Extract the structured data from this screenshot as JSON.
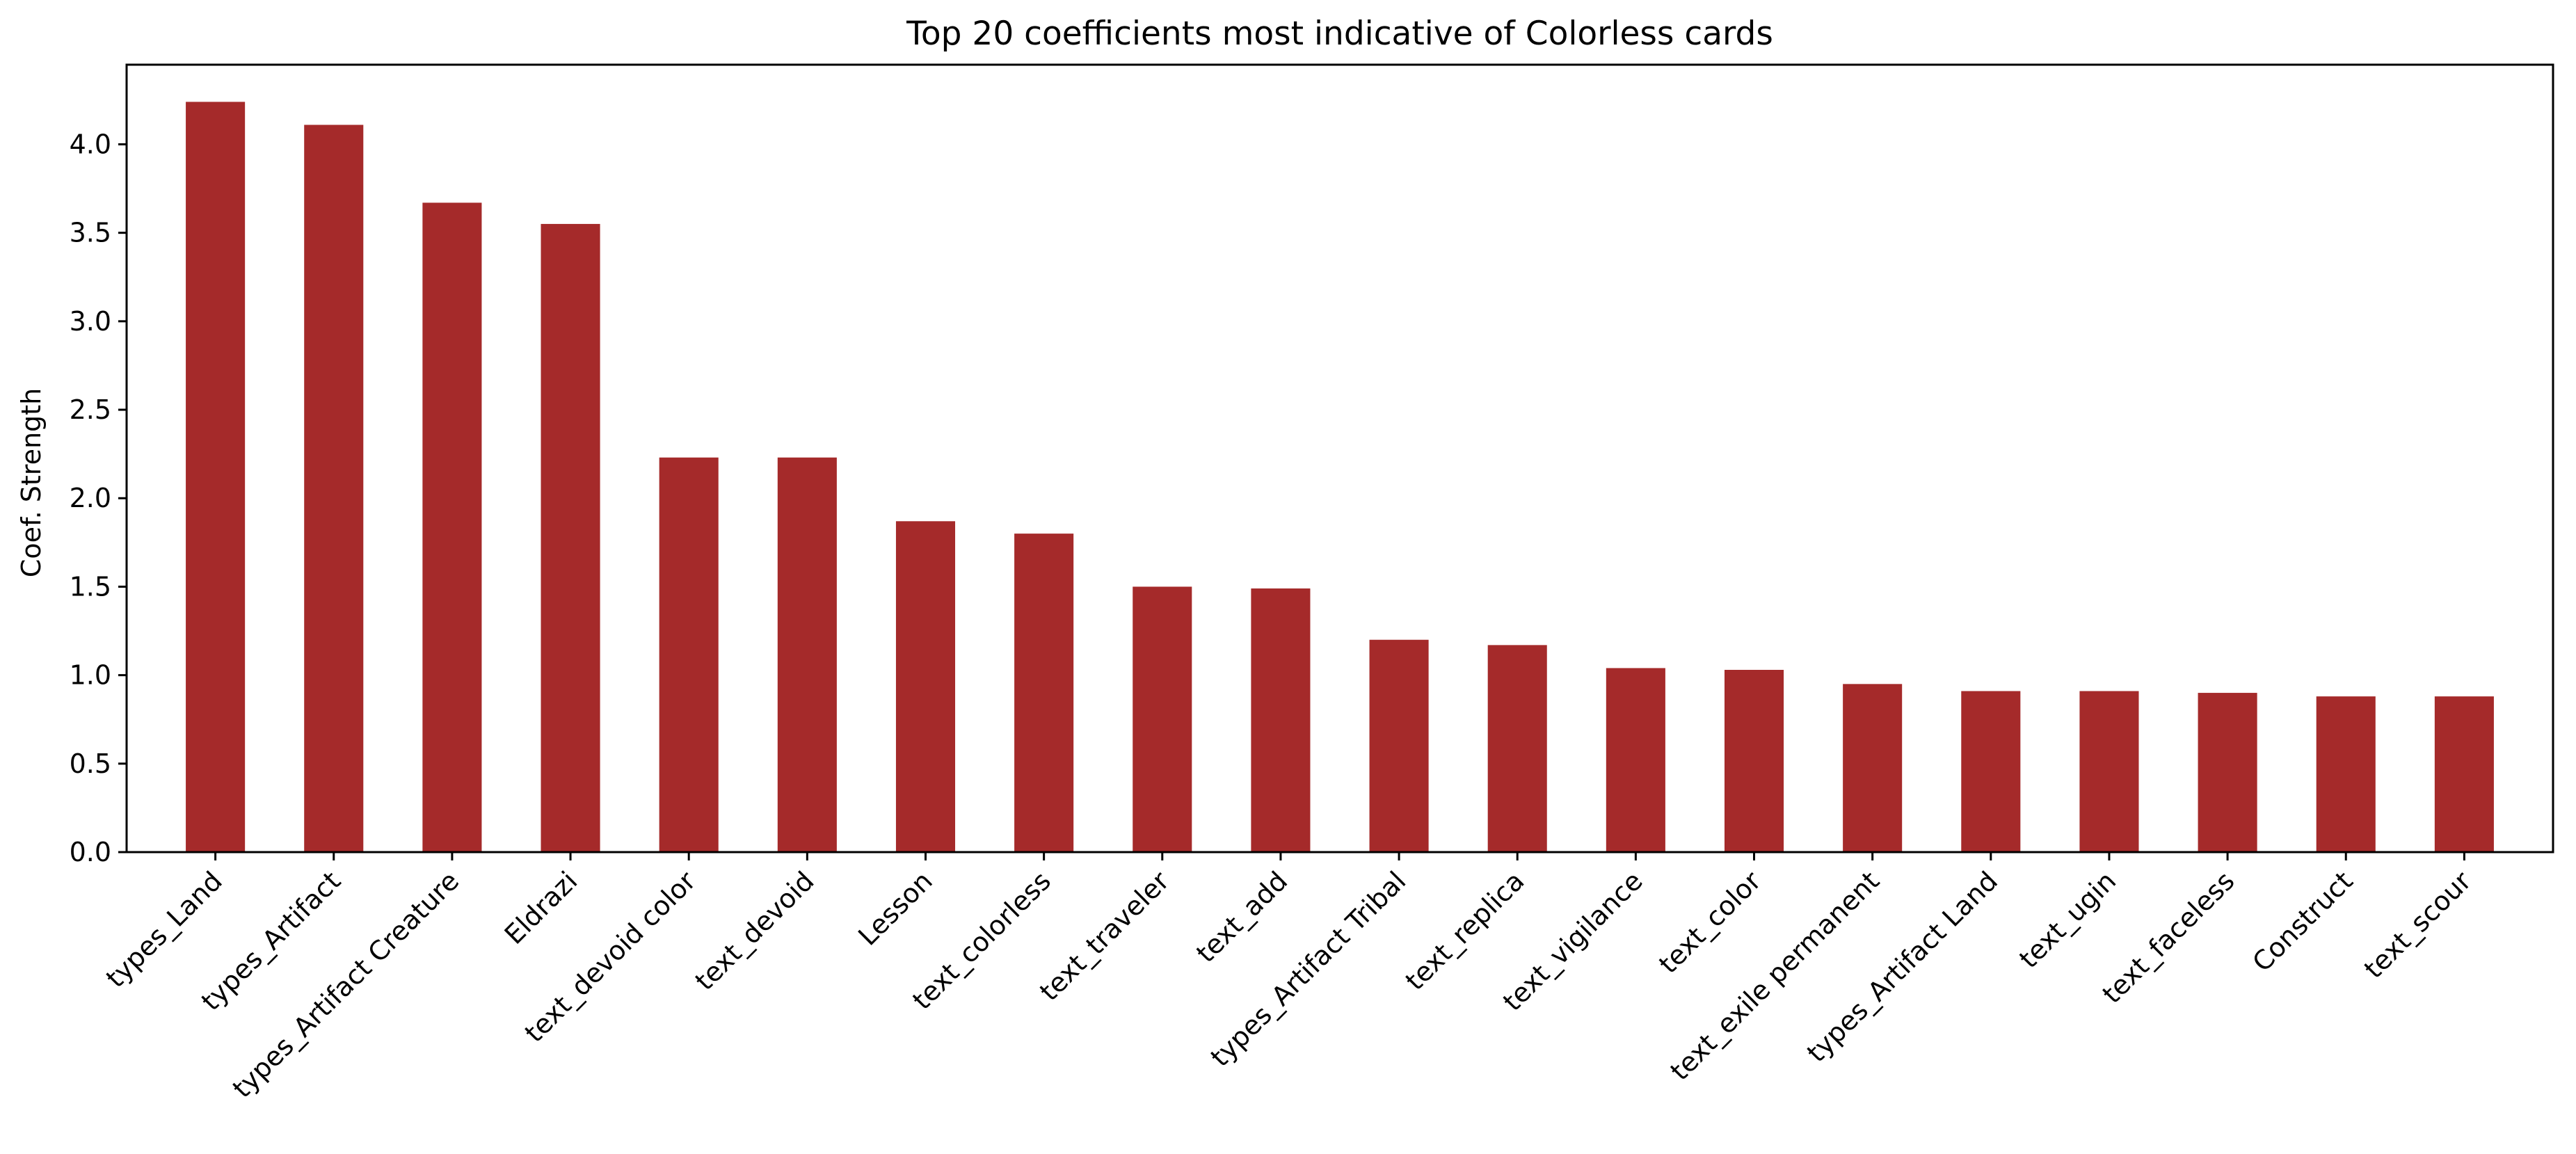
{
  "chart_data": {
    "type": "bar",
    "title": "Top 20 coefficients most indicative of Colorless cards",
    "xlabel": "",
    "ylabel": "Coef. Strength",
    "categories": [
      "types_Land",
      "types_Artifact",
      "types_Artifact Creature",
      "Eldrazi",
      "text_devoid color",
      "text_devoid",
      "Lesson",
      "text_colorless",
      "text_traveler",
      "text_add",
      "types_Artifact Tribal",
      "text_replica",
      "text_vigilance",
      "text_color",
      "text_exile permanent",
      "types_Artifact Land",
      "text_ugin",
      "text_faceless",
      "Construct",
      "text_scour"
    ],
    "values": [
      4.24,
      4.11,
      3.67,
      3.55,
      2.23,
      2.23,
      1.87,
      1.8,
      1.5,
      1.49,
      1.2,
      1.17,
      1.04,
      1.03,
      0.95,
      0.91,
      0.91,
      0.9,
      0.88,
      0.88
    ],
    "yticks": [
      "0.0",
      "0.5",
      "1.0",
      "1.5",
      "2.0",
      "2.5",
      "3.0",
      "3.5",
      "4.0"
    ],
    "ylim": [
      0,
      4.45
    ],
    "grid": false,
    "legend": "none",
    "bar_color": "#a52a2a"
  }
}
